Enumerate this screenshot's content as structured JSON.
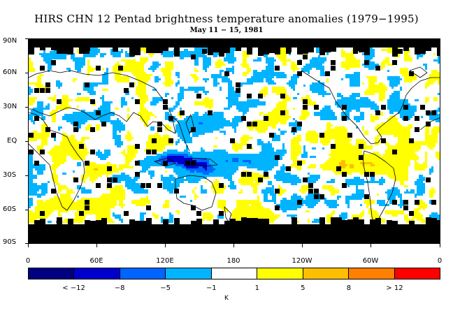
{
  "title": "HIRS CHN 12 Pentad brightness temperature anomalies (1979−1995)",
  "subtitle": "May 11 − 15, 1981",
  "lat_labels": [
    "90N",
    "60N",
    "30N",
    "EQ",
    "30S",
    "60S",
    "90S"
  ],
  "lon_labels": [
    "0",
    "60E",
    "120E",
    "180",
    "120W",
    "60W",
    "0"
  ],
  "colorbar": {
    "colors": [
      "#000080",
      "#0000cd",
      "#0064ff",
      "#00b4ff",
      "#ffffff",
      "#ffff00",
      "#ffbf00",
      "#ff8000",
      "#ff0000"
    ],
    "labels": [
      "< −12",
      "−8",
      "−5",
      "−1",
      "1",
      "5",
      "8",
      "> 12"
    ],
    "unit": "K"
  },
  "map": {
    "missing_color": "#000000",
    "coast_color": "#000000"
  }
}
